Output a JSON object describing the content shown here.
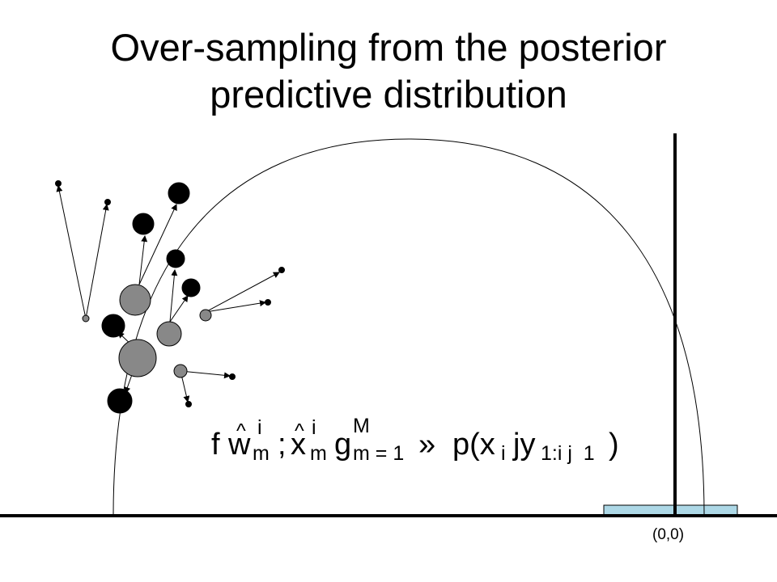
{
  "slide": {
    "title_line1": "Over-sampling from the posterior",
    "title_line2": "predictive distribution"
  },
  "equation": {
    "f": "f",
    "w": "w",
    "hat1": "^",
    "sup_i_1": "i",
    "sub_m_1": "m",
    "semi": ";",
    "x": "x",
    "hat2": "^",
    "sup_i_2": "i",
    "sub_m_2": "m",
    "g": "g",
    "sup_M": "M",
    "sub_m_eq_1": "m = 1",
    "approx": "»",
    "p_open": "p(x",
    "sub_i": "i",
    "jy": "jy",
    "sub_range": "1:i j  1",
    "close": ")"
  },
  "axis": {
    "origin_label": "(0,0)"
  },
  "colors": {
    "particle_large": "#888888",
    "particle_sampled": "#000000",
    "highlight_box": "#add8e6",
    "line": "#000000"
  }
}
